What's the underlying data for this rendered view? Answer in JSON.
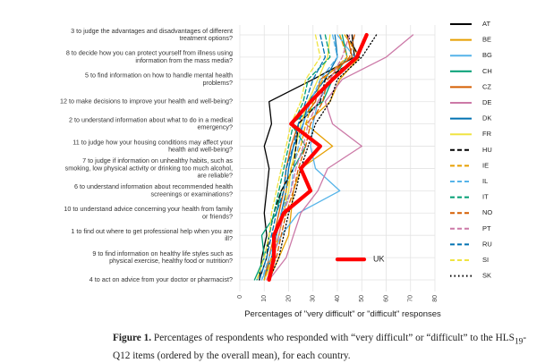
{
  "chart_data": {
    "type": "line",
    "orientation": "horizontal",
    "xlabel": "Percentages of \"very difficult\" or \"difficult\" responses",
    "xlim": [
      0,
      80
    ],
    "xticks": [
      0,
      10,
      20,
      30,
      40,
      50,
      60,
      70,
      80
    ],
    "grid": true,
    "legend_position": "right",
    "categories": [
      [
        "3 to judge the advantages and disadvantages of different",
        "treatment options?"
      ],
      [
        "8 to decide how you can protect yourself from illness using",
        "information from the mass media?"
      ],
      [
        "5 to find information on how to handle mental health",
        "problems?"
      ],
      [
        "12 to make decisions to improve your health and well-being?"
      ],
      [
        "2 to understand information about what to do in a medical",
        "emergency?"
      ],
      [
        "11 to judge how your housing conditions may affect your",
        "health and well-being?"
      ],
      [
        "7 to judge if information on unhealthy habits, such as",
        "smoking, low physical activity or drinking too much alcohol,",
        "are reliable?"
      ],
      [
        "6 to understand information about recommended health",
        "screenings or examinations?"
      ],
      [
        "10 to understand advice concerning your health from family",
        "or friends?"
      ],
      [
        "1 to find out where to get professional help when you are",
        "ill?"
      ],
      [
        "9 to find information on healthy life styles such as",
        "physical exercise, healthy food or nutrition?"
      ],
      [
        "4 to act on advice from your doctor or pharmacist?"
      ]
    ],
    "series": [
      {
        "name": "AT",
        "color": "#000000",
        "dash": "solid",
        "values": [
          46,
          47,
          30,
          12,
          13,
          10,
          12,
          11,
          10,
          11,
          9,
          8
        ]
      },
      {
        "name": "BE",
        "color": "#e69f00",
        "dash": "solid",
        "values": [
          43,
          49,
          41,
          37,
          27,
          38,
          25,
          22,
          21,
          20,
          16,
          12
        ]
      },
      {
        "name": "BG",
        "color": "#56b4e9",
        "dash": "solid",
        "values": [
          40,
          47,
          38,
          32,
          30,
          29,
          31,
          41,
          24,
          17,
          13,
          9
        ]
      },
      {
        "name": "CH",
        "color": "#009e73",
        "dash": "solid",
        "values": [
          42,
          44,
          38,
          34,
          21,
          27,
          22,
          17,
          15,
          9,
          10,
          6
        ]
      },
      {
        "name": "CZ",
        "color": "#d55e00",
        "dash": "solid",
        "values": [
          44,
          46,
          33,
          31,
          24,
          21,
          19,
          18,
          16,
          14,
          12,
          10
        ]
      },
      {
        "name": "DE",
        "color": "#cc79a7",
        "dash": "solid",
        "values": [
          71,
          60,
          42,
          35,
          38,
          50,
          36,
          32,
          25,
          22,
          19,
          12
        ]
      },
      {
        "name": "DK",
        "color": "#0072b2",
        "dash": "solid",
        "values": [
          39,
          40,
          35,
          28,
          26,
          22,
          20,
          19,
          17,
          15,
          13,
          10
        ]
      },
      {
        "name": "FR",
        "color": "#f0e442",
        "dash": "solid",
        "values": [
          37,
          36,
          32,
          28,
          25,
          23,
          21,
          20,
          18,
          16,
          14,
          10
        ]
      },
      {
        "name": "HU",
        "color": "#000000",
        "dash": "longdash",
        "values": [
          44,
          49,
          35,
          33,
          24,
          23,
          22,
          17,
          14,
          12,
          11,
          8
        ]
      },
      {
        "name": "IE",
        "color": "#e69f00",
        "dash": "longdash",
        "values": [
          41,
          44,
          34,
          30,
          27,
          25,
          21,
          19,
          18,
          16,
          13,
          10
        ]
      },
      {
        "name": "IL",
        "color": "#56b4e9",
        "dash": "longdash",
        "values": [
          38,
          40,
          33,
          29,
          26,
          24,
          22,
          21,
          17,
          15,
          12,
          9
        ]
      },
      {
        "name": "IT",
        "color": "#009e73",
        "dash": "longdash",
        "values": [
          35,
          37,
          28,
          26,
          22,
          20,
          18,
          16,
          14,
          12,
          10,
          7
        ]
      },
      {
        "name": "NO",
        "color": "#d55e00",
        "dash": "longdash",
        "values": [
          47,
          45,
          36,
          34,
          29,
          27,
          24,
          22,
          19,
          17,
          15,
          11
        ]
      },
      {
        "name": "PT",
        "color": "#cc79a7",
        "dash": "longdash",
        "values": [
          45,
          42,
          37,
          32,
          28,
          26,
          23,
          21,
          18,
          16,
          14,
          11
        ]
      },
      {
        "name": "RU",
        "color": "#0072b2",
        "dash": "longdash",
        "values": [
          33,
          35,
          30,
          27,
          24,
          22,
          19,
          18,
          15,
          13,
          11,
          8
        ]
      },
      {
        "name": "SI",
        "color": "#f0e442",
        "dash": "longdash",
        "values": [
          31,
          33,
          27,
          25,
          21,
          19,
          17,
          15,
          13,
          12,
          10,
          7
        ]
      },
      {
        "name": "SK",
        "color": "#000000",
        "dash": "dotted",
        "values": [
          56,
          50,
          40,
          37,
          31,
          28,
          25,
          23,
          20,
          18,
          16,
          12
        ]
      },
      {
        "name": "UK",
        "color": "#ff0000",
        "dash": "bold",
        "values": [
          52,
          48,
          38,
          29,
          21,
          33,
          25,
          29,
          18,
          14,
          14,
          12
        ]
      }
    ],
    "annotations": [
      "UK"
    ]
  },
  "caption": {
    "label": "Figure 1.",
    "text": "Percentages of respondents who responded with “very difficult” or “difficult” to the HLS",
    "subscript": "19",
    "text_after": "-Q12 items (ordered by the overall mean), for each country."
  }
}
